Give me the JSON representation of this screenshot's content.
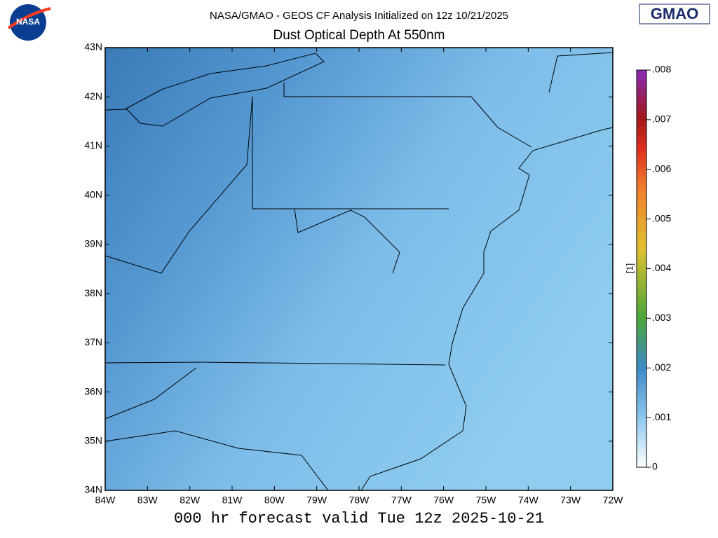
{
  "header": {
    "logo_left": "NASA",
    "logo_right": "GMAO",
    "title": "NASA/GMAO - GEOS CF Analysis Initialized on 12z 10/21/2025",
    "subtitle": "Dust Optical Depth At 550nm"
  },
  "map": {
    "lonlim": [
      -84,
      -72
    ],
    "latlim": [
      34,
      43
    ],
    "lonticks": [
      {
        "value": -84,
        "label": "84W"
      },
      {
        "value": -83,
        "label": "83W"
      },
      {
        "value": -82,
        "label": "82W"
      },
      {
        "value": -81,
        "label": "81W"
      },
      {
        "value": -80,
        "label": "80W"
      },
      {
        "value": -79,
        "label": "79W"
      },
      {
        "value": -78,
        "label": "78W"
      },
      {
        "value": -77,
        "label": "77W"
      },
      {
        "value": -76,
        "label": "76W"
      },
      {
        "value": -75,
        "label": "75W"
      },
      {
        "value": -74,
        "label": "74W"
      },
      {
        "value": -73,
        "label": "73W"
      },
      {
        "value": -72,
        "label": "72W"
      }
    ],
    "latticks": [
      {
        "value": 34,
        "label": "34N"
      },
      {
        "value": 35,
        "label": "35N"
      },
      {
        "value": 36,
        "label": "36N"
      },
      {
        "value": 37,
        "label": "37N"
      },
      {
        "value": 38,
        "label": "38N"
      },
      {
        "value": 39,
        "label": "39N"
      },
      {
        "value": 40,
        "label": "40N"
      },
      {
        "value": 41,
        "label": "41N"
      },
      {
        "value": 42,
        "label": "42N"
      },
      {
        "value": 43,
        "label": "43N"
      }
    ]
  },
  "colorbar": {
    "label": "[1]",
    "lim": [
      0,
      0.008
    ],
    "ticks": [
      {
        "value": 0,
        "label": "0"
      },
      {
        "value": 0.001,
        "label": ".001"
      },
      {
        "value": 0.002,
        "label": ".002"
      },
      {
        "value": 0.003,
        "label": ".003"
      },
      {
        "value": 0.004,
        "label": ".004"
      },
      {
        "value": 0.005,
        "label": ".005"
      },
      {
        "value": 0.006,
        "label": ".006"
      },
      {
        "value": 0.007,
        "label": ".007"
      },
      {
        "value": 0.008,
        "label": ".008"
      }
    ]
  },
  "footer": "000 hr forecast valid Tue 12z 2025-10-21"
}
